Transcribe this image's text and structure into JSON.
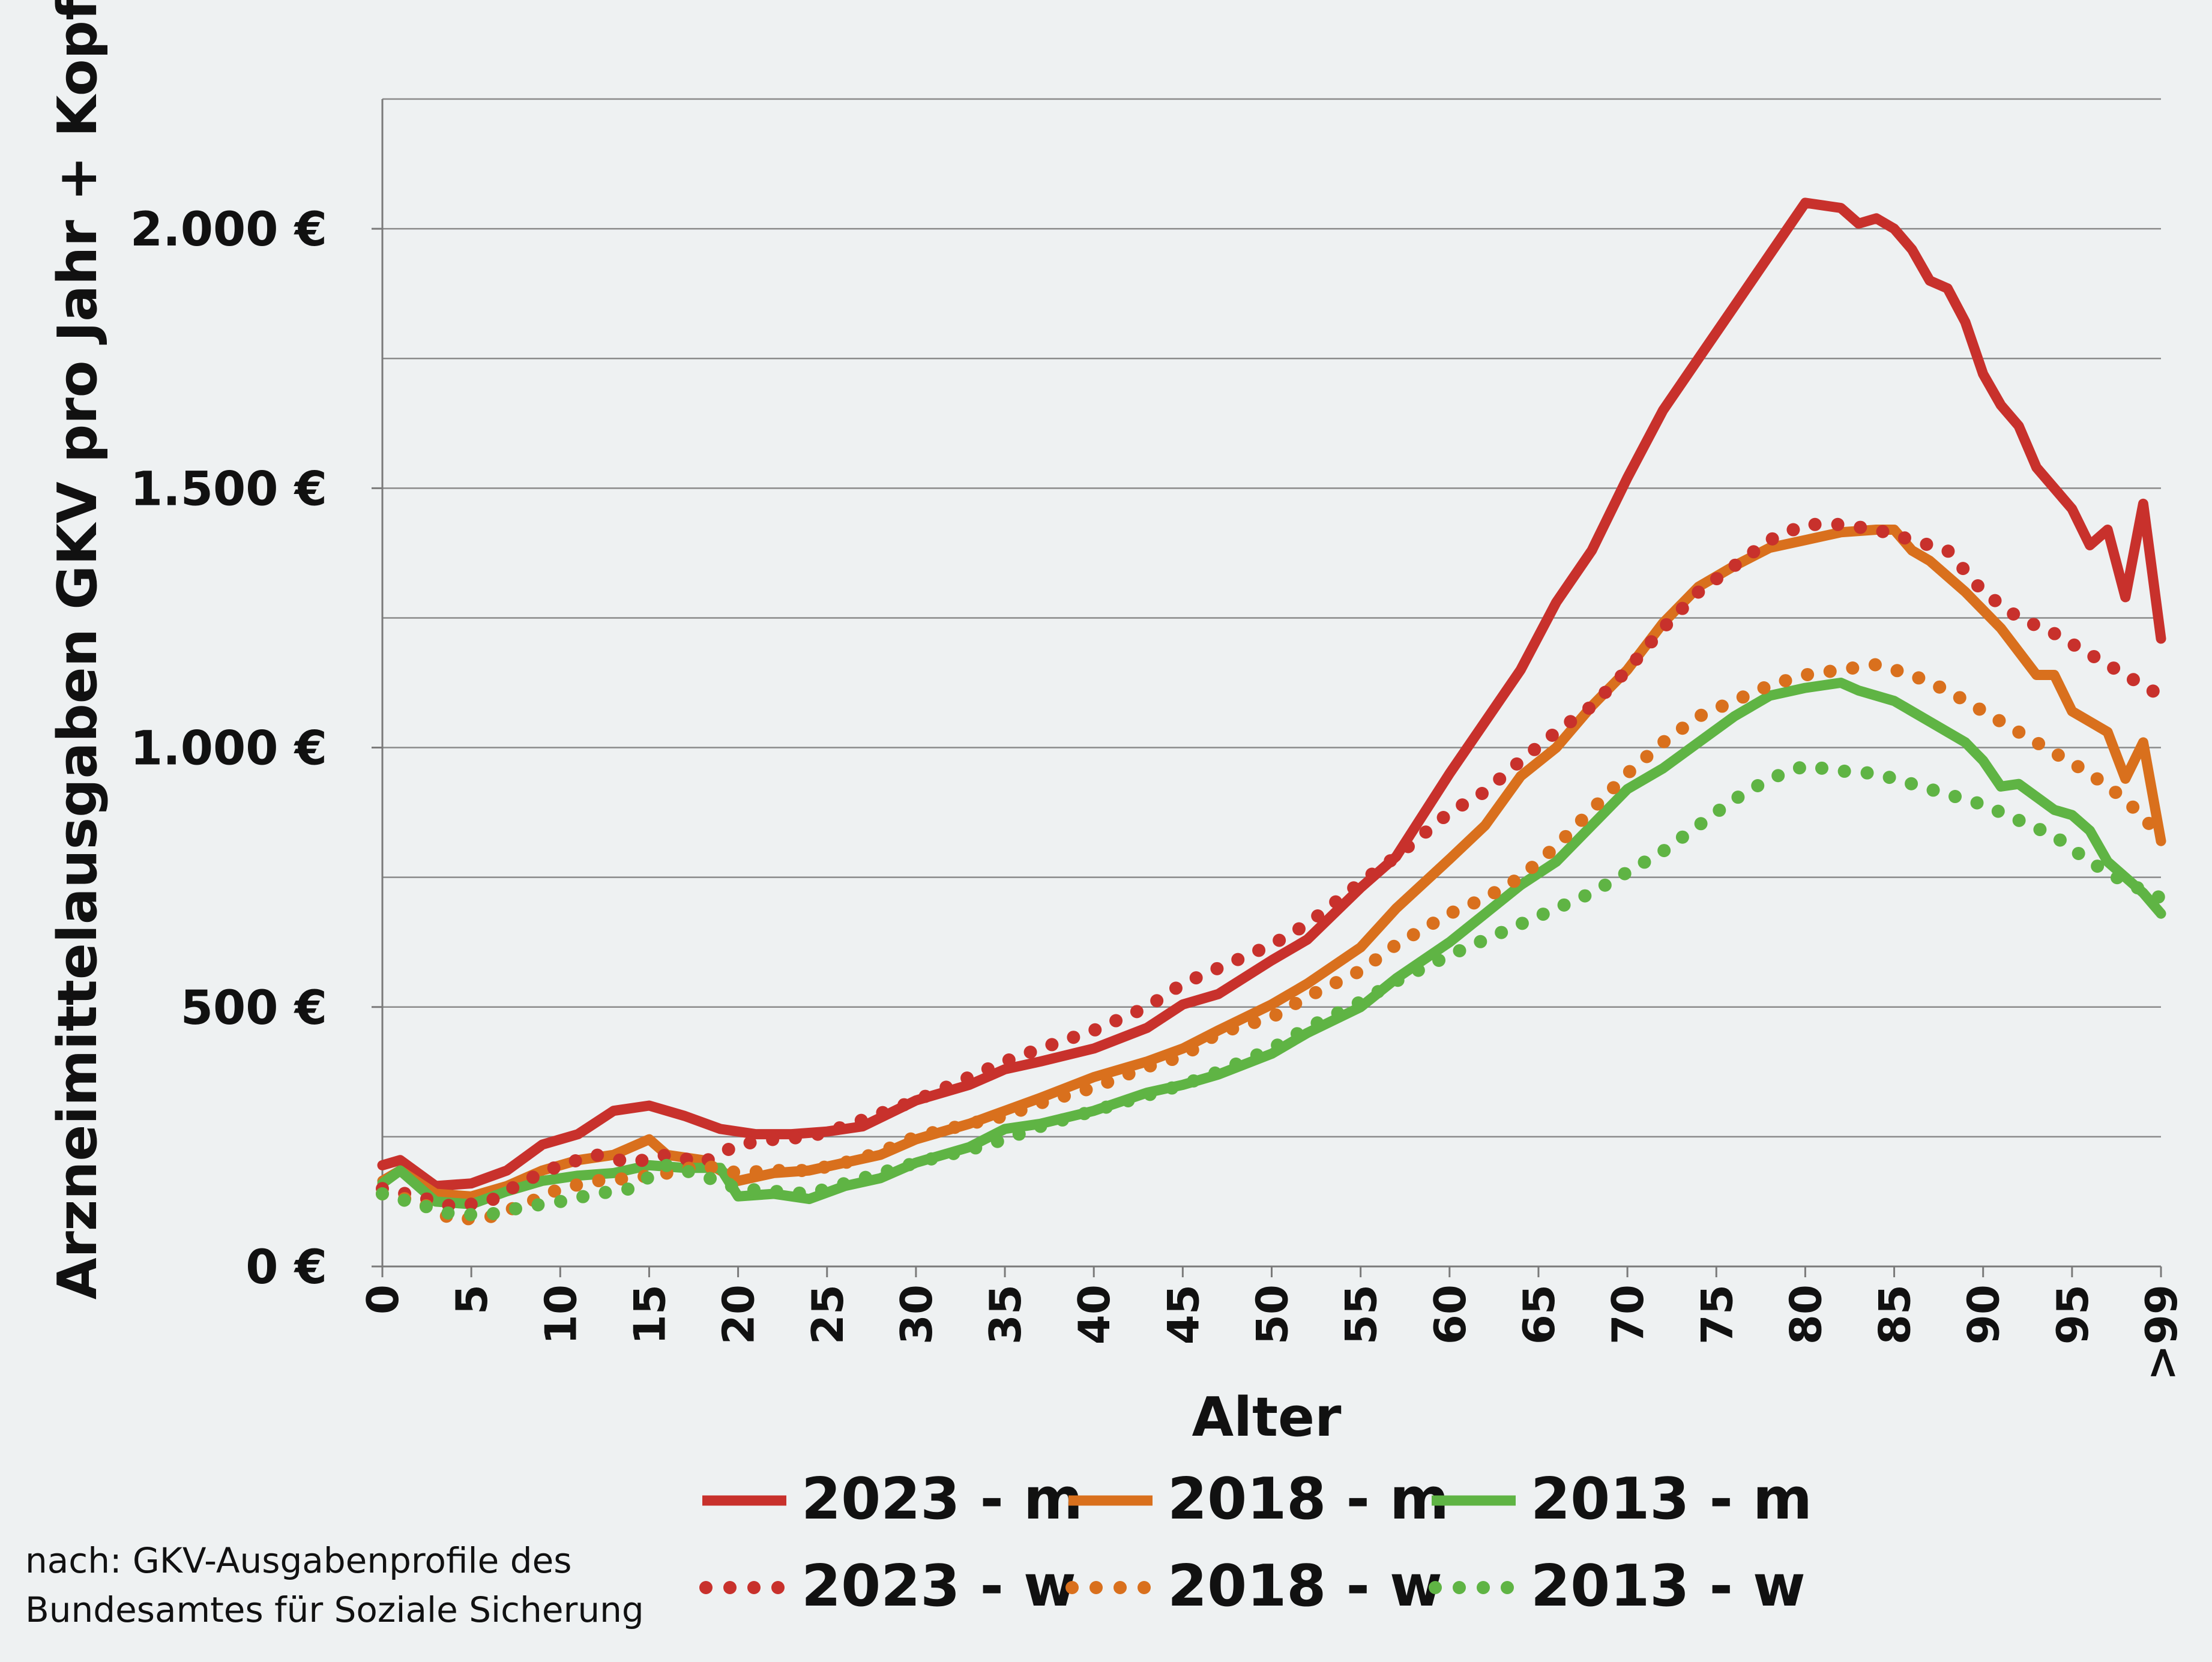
{
  "chart_data": {
    "type": "line",
    "title": "",
    "xlabel": "Alter",
    "ylabel": "Arzneimittelausgaben GKV pro Jahr + Kopf",
    "xlim": [
      0,
      100
    ],
    "ylim": [
      0,
      2250
    ],
    "y_ticks": [
      0,
      500,
      1000,
      1500,
      2000
    ],
    "y_tick_labels": [
      "0 €",
      "500 €",
      "1.000 €",
      "1.500 €",
      "2.000 €"
    ],
    "y_gridlines": [
      250,
      500,
      750,
      1000,
      1250,
      1500,
      1750,
      2000,
      2250
    ],
    "x_ticks": [
      0,
      5,
      10,
      15,
      20,
      25,
      30,
      35,
      40,
      45,
      50,
      55,
      60,
      65,
      70,
      75,
      80,
      85,
      90,
      95,
      100
    ],
    "x_tick_labels": [
      "0",
      "5",
      "10",
      "15",
      "20",
      "25",
      "30",
      "35",
      "40",
      "45",
      "50",
      "55",
      "60",
      "65",
      "70",
      "75",
      "80",
      "85",
      "90",
      "95",
      ">99"
    ],
    "grid": true,
    "legend_position": "bottom",
    "series": [
      {
        "name": "2023 - m",
        "color": "#c8312c",
        "style": "solid",
        "points": [
          [
            0,
            195
          ],
          [
            1,
            205
          ],
          [
            3,
            155
          ],
          [
            5,
            160
          ],
          [
            7,
            185
          ],
          [
            9,
            235
          ],
          [
            11,
            255
          ],
          [
            13,
            300
          ],
          [
            15,
            310
          ],
          [
            17,
            290
          ],
          [
            19,
            265
          ],
          [
            21,
            255
          ],
          [
            23,
            255
          ],
          [
            25,
            260
          ],
          [
            27,
            270
          ],
          [
            30,
            320
          ],
          [
            33,
            350
          ],
          [
            35,
            380
          ],
          [
            37,
            395
          ],
          [
            40,
            420
          ],
          [
            43,
            460
          ],
          [
            45,
            505
          ],
          [
            47,
            525
          ],
          [
            50,
            590
          ],
          [
            52,
            630
          ],
          [
            55,
            730
          ],
          [
            57,
            790
          ],
          [
            60,
            950
          ],
          [
            62,
            1050
          ],
          [
            64,
            1150
          ],
          [
            66,
            1280
          ],
          [
            68,
            1380
          ],
          [
            70,
            1520
          ],
          [
            72,
            1650
          ],
          [
            74,
            1750
          ],
          [
            76,
            1850
          ],
          [
            78,
            1950
          ],
          [
            80,
            2050
          ],
          [
            81,
            2045
          ],
          [
            82,
            2040
          ],
          [
            83,
            2010
          ],
          [
            84,
            2020
          ],
          [
            85,
            2000
          ],
          [
            86,
            1960
          ],
          [
            87,
            1900
          ],
          [
            88,
            1885
          ],
          [
            89,
            1820
          ],
          [
            90,
            1720
          ],
          [
            91,
            1660
          ],
          [
            92,
            1620
          ],
          [
            93,
            1540
          ],
          [
            94,
            1500
          ],
          [
            95,
            1460
          ],
          [
            96,
            1390
          ],
          [
            97,
            1420
          ],
          [
            98,
            1290
          ],
          [
            99,
            1470
          ],
          [
            100,
            1210
          ]
        ]
      },
      {
        "name": "2018 - m",
        "color": "#d9701d",
        "style": "solid",
        "points": [
          [
            0,
            165
          ],
          [
            1,
            185
          ],
          [
            3,
            140
          ],
          [
            5,
            135
          ],
          [
            7,
            155
          ],
          [
            9,
            185
          ],
          [
            11,
            205
          ],
          [
            13,
            215
          ],
          [
            15,
            245
          ],
          [
            16,
            215
          ],
          [
            18,
            205
          ],
          [
            20,
            165
          ],
          [
            22,
            180
          ],
          [
            24,
            185
          ],
          [
            26,
            200
          ],
          [
            28,
            215
          ],
          [
            30,
            245
          ],
          [
            33,
            275
          ],
          [
            35,
            300
          ],
          [
            37,
            325
          ],
          [
            40,
            365
          ],
          [
            43,
            395
          ],
          [
            45,
            420
          ],
          [
            47,
            455
          ],
          [
            50,
            505
          ],
          [
            52,
            545
          ],
          [
            55,
            615
          ],
          [
            57,
            690
          ],
          [
            60,
            785
          ],
          [
            62,
            850
          ],
          [
            64,
            945
          ],
          [
            66,
            1000
          ],
          [
            68,
            1080
          ],
          [
            70,
            1150
          ],
          [
            72,
            1240
          ],
          [
            74,
            1310
          ],
          [
            76,
            1350
          ],
          [
            78,
            1385
          ],
          [
            80,
            1400
          ],
          [
            82,
            1415
          ],
          [
            84,
            1420
          ],
          [
            85,
            1420
          ],
          [
            86,
            1380
          ],
          [
            87,
            1360
          ],
          [
            89,
            1300
          ],
          [
            91,
            1230
          ],
          [
            93,
            1140
          ],
          [
            94,
            1140
          ],
          [
            95,
            1070
          ],
          [
            96,
            1050
          ],
          [
            97,
            1030
          ],
          [
            98,
            940
          ],
          [
            99,
            1010
          ],
          [
            100,
            820
          ]
        ]
      },
      {
        "name": "2013 - m",
        "color": "#5fb444",
        "style": "solid",
        "points": [
          [
            0,
            160
          ],
          [
            1,
            185
          ],
          [
            3,
            125
          ],
          [
            5,
            120
          ],
          [
            7,
            145
          ],
          [
            9,
            165
          ],
          [
            11,
            175
          ],
          [
            13,
            180
          ],
          [
            15,
            195
          ],
          [
            17,
            190
          ],
          [
            19,
            190
          ],
          [
            20,
            135
          ],
          [
            22,
            140
          ],
          [
            24,
            130
          ],
          [
            26,
            155
          ],
          [
            28,
            170
          ],
          [
            30,
            200
          ],
          [
            33,
            230
          ],
          [
            35,
            265
          ],
          [
            37,
            275
          ],
          [
            40,
            300
          ],
          [
            43,
            335
          ],
          [
            45,
            350
          ],
          [
            47,
            370
          ],
          [
            50,
            410
          ],
          [
            52,
            450
          ],
          [
            55,
            500
          ],
          [
            57,
            555
          ],
          [
            60,
            625
          ],
          [
            62,
            680
          ],
          [
            64,
            735
          ],
          [
            66,
            780
          ],
          [
            68,
            850
          ],
          [
            70,
            920
          ],
          [
            72,
            960
          ],
          [
            74,
            1010
          ],
          [
            76,
            1060
          ],
          [
            78,
            1100
          ],
          [
            80,
            1115
          ],
          [
            82,
            1125
          ],
          [
            83,
            1110
          ],
          [
            85,
            1090
          ],
          [
            87,
            1050
          ],
          [
            89,
            1010
          ],
          [
            90,
            975
          ],
          [
            91,
            925
          ],
          [
            92,
            930
          ],
          [
            94,
            880
          ],
          [
            95,
            870
          ],
          [
            96,
            840
          ],
          [
            97,
            780
          ],
          [
            99,
            720
          ],
          [
            100,
            680
          ]
        ]
      },
      {
        "name": "2023 - w",
        "color": "#c8312c",
        "style": "dotted",
        "points": [
          [
            0,
            150
          ],
          [
            2,
            135
          ],
          [
            4,
            115
          ],
          [
            6,
            125
          ],
          [
            8,
            165
          ],
          [
            10,
            195
          ],
          [
            12,
            215
          ],
          [
            14,
            200
          ],
          [
            16,
            215
          ],
          [
            18,
            200
          ],
          [
            20,
            235
          ],
          [
            22,
            245
          ],
          [
            24,
            250
          ],
          [
            26,
            270
          ],
          [
            28,
            295
          ],
          [
            30,
            320
          ],
          [
            33,
            365
          ],
          [
            35,
            395
          ],
          [
            37,
            420
          ],
          [
            40,
            455
          ],
          [
            43,
            500
          ],
          [
            45,
            545
          ],
          [
            47,
            575
          ],
          [
            50,
            620
          ],
          [
            52,
            660
          ],
          [
            55,
            740
          ],
          [
            57,
            790
          ],
          [
            60,
            875
          ],
          [
            62,
            915
          ],
          [
            64,
            975
          ],
          [
            66,
            1030
          ],
          [
            68,
            1080
          ],
          [
            70,
            1150
          ],
          [
            72,
            1230
          ],
          [
            74,
            1300
          ],
          [
            76,
            1350
          ],
          [
            78,
            1400
          ],
          [
            80,
            1430
          ],
          [
            82,
            1430
          ],
          [
            84,
            1420
          ],
          [
            86,
            1400
          ],
          [
            88,
            1380
          ],
          [
            90,
            1300
          ],
          [
            92,
            1250
          ],
          [
            94,
            1220
          ],
          [
            96,
            1180
          ],
          [
            98,
            1140
          ],
          [
            100,
            1100
          ]
        ]
      },
      {
        "name": "2018 - w",
        "color": "#d9701d",
        "style": "dotted",
        "points": [
          [
            0,
            140
          ],
          [
            2,
            125
          ],
          [
            4,
            90
          ],
          [
            6,
            95
          ],
          [
            8,
            120
          ],
          [
            10,
            150
          ],
          [
            12,
            165
          ],
          [
            14,
            170
          ],
          [
            16,
            180
          ],
          [
            18,
            195
          ],
          [
            20,
            180
          ],
          [
            22,
            185
          ],
          [
            24,
            185
          ],
          [
            26,
            200
          ],
          [
            28,
            220
          ],
          [
            30,
            250
          ],
          [
            33,
            275
          ],
          [
            35,
            290
          ],
          [
            37,
            315
          ],
          [
            40,
            345
          ],
          [
            43,
            385
          ],
          [
            45,
            405
          ],
          [
            47,
            450
          ],
          [
            50,
            480
          ],
          [
            52,
            520
          ],
          [
            55,
            570
          ],
          [
            57,
            620
          ],
          [
            60,
            680
          ],
          [
            62,
            710
          ],
          [
            64,
            750
          ],
          [
            66,
            810
          ],
          [
            68,
            880
          ],
          [
            70,
            950
          ],
          [
            72,
            1010
          ],
          [
            74,
            1060
          ],
          [
            76,
            1090
          ],
          [
            78,
            1120
          ],
          [
            80,
            1140
          ],
          [
            82,
            1150
          ],
          [
            84,
            1160
          ],
          [
            86,
            1140
          ],
          [
            88,
            1110
          ],
          [
            90,
            1070
          ],
          [
            92,
            1030
          ],
          [
            94,
            990
          ],
          [
            96,
            950
          ],
          [
            98,
            900
          ],
          [
            100,
            830
          ]
        ]
      },
      {
        "name": "2013 - w",
        "color": "#5fb444",
        "style": "dotted",
        "points": [
          [
            0,
            140
          ],
          [
            2,
            120
          ],
          [
            4,
            100
          ],
          [
            6,
            100
          ],
          [
            8,
            115
          ],
          [
            10,
            125
          ],
          [
            12,
            140
          ],
          [
            14,
            150
          ],
          [
            16,
            195
          ],
          [
            18,
            175
          ],
          [
            20,
            150
          ],
          [
            22,
            145
          ],
          [
            24,
            140
          ],
          [
            26,
            160
          ],
          [
            28,
            180
          ],
          [
            30,
            200
          ],
          [
            33,
            225
          ],
          [
            35,
            245
          ],
          [
            37,
            270
          ],
          [
            40,
            300
          ],
          [
            43,
            330
          ],
          [
            45,
            350
          ],
          [
            47,
            375
          ],
          [
            50,
            420
          ],
          [
            52,
            460
          ],
          [
            55,
            510
          ],
          [
            57,
            550
          ],
          [
            60,
            600
          ],
          [
            62,
            630
          ],
          [
            64,
            660
          ],
          [
            66,
            690
          ],
          [
            68,
            720
          ],
          [
            70,
            760
          ],
          [
            72,
            800
          ],
          [
            74,
            850
          ],
          [
            76,
            900
          ],
          [
            78,
            940
          ],
          [
            80,
            965
          ],
          [
            82,
            955
          ],
          [
            84,
            950
          ],
          [
            86,
            930
          ],
          [
            88,
            910
          ],
          [
            90,
            890
          ],
          [
            92,
            860
          ],
          [
            94,
            830
          ],
          [
            96,
            780
          ],
          [
            98,
            740
          ],
          [
            100,
            710
          ]
        ]
      }
    ]
  },
  "source_note": {
    "line1": "nach: GKV-Ausgabenprofile  des",
    "line2": "Bundesamtes für Soziale Sicherung"
  }
}
